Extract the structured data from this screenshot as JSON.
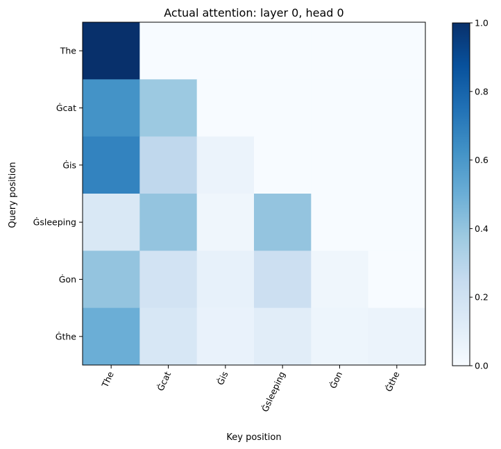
{
  "chart_data": {
    "type": "heatmap",
    "title": "Actual attention: layer 0, head 0",
    "xlabel": "Key position",
    "ylabel": "Query position",
    "x_labels": [
      "The",
      "Ġcat",
      "Ġis",
      "Ġsleeping",
      "Ġon",
      "Ġthe"
    ],
    "y_labels": [
      "The",
      "Ġcat",
      "Ġis",
      "Ġsleeping",
      "Ġon",
      "Ġthe"
    ],
    "values": [
      [
        1.0,
        0.0,
        0.0,
        0.0,
        0.0,
        0.0
      ],
      [
        0.62,
        0.38,
        0.0,
        0.0,
        0.0,
        0.0
      ],
      [
        0.68,
        0.27,
        0.06,
        0.0,
        0.0,
        0.0
      ],
      [
        0.15,
        0.4,
        0.04,
        0.4,
        0.0,
        0.0
      ],
      [
        0.4,
        0.19,
        0.08,
        0.22,
        0.04,
        0.0
      ],
      [
        0.5,
        0.16,
        0.07,
        0.11,
        0.05,
        0.06
      ]
    ],
    "colormap": "Blues",
    "vmin": 0.0,
    "vmax": 1.0,
    "colorbar_ticks": [
      "0.0",
      "0.2",
      "0.4",
      "0.6",
      "0.8",
      "1.0"
    ],
    "colorbar_tick_values": [
      0.0,
      0.2,
      0.4,
      0.6,
      0.8,
      1.0
    ],
    "grid": false
  }
}
